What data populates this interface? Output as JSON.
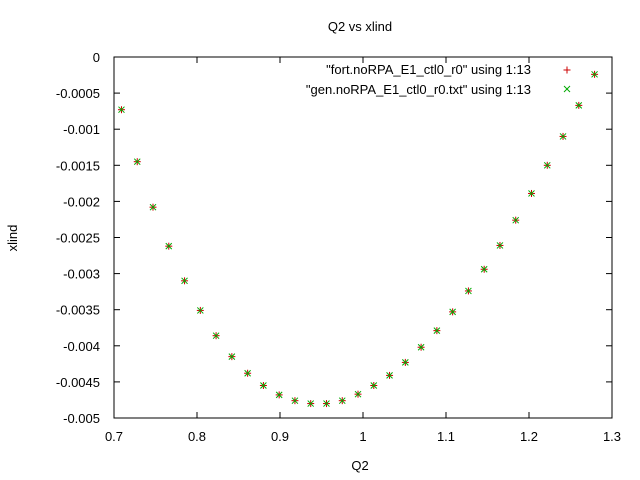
{
  "chart_data": {
    "type": "scatter",
    "title": "Q2 vs xlind",
    "xlabel": "Q2",
    "ylabel": "xlind",
    "xlim": [
      0.7,
      1.3
    ],
    "ylim": [
      -0.005,
      0
    ],
    "grid": false,
    "legend_position": "top-right",
    "x_ticks": [
      0.7,
      0.8,
      0.9,
      1.0,
      1.1,
      1.2,
      1.3
    ],
    "x_tick_labels": [
      "0.7",
      "0.8",
      "0.9",
      "1",
      "1.1",
      "1.2",
      "1.3"
    ],
    "y_ticks": [
      0,
      -0.0005,
      -0.001,
      -0.0015,
      -0.002,
      -0.0025,
      -0.003,
      -0.0035,
      -0.004,
      -0.0045,
      -0.005
    ],
    "y_tick_labels": [
      "0",
      "-0.0005",
      "-0.001",
      "-0.0015",
      "-0.002",
      "-0.0025",
      "-0.003",
      "-0.0035",
      "-0.004",
      "-0.0045",
      "-0.005"
    ],
    "series": [
      {
        "name": "\"fort.noRPA_E1_ctl0_r0\" using 1:13",
        "marker": "plus",
        "color": "#cc0000",
        "x": [
          0.709,
          0.728,
          0.747,
          0.766,
          0.785,
          0.804,
          0.823,
          0.842,
          0.861,
          0.88,
          0.899,
          0.918,
          0.937,
          0.956,
          0.975,
          0.994,
          1.013,
          1.032,
          1.051,
          1.07,
          1.089,
          1.108,
          1.127,
          1.146,
          1.165,
          1.184,
          1.203,
          1.222,
          1.241,
          1.26,
          1.279
        ],
        "y": [
          -0.00073,
          -0.00145,
          -0.00208,
          -0.00262,
          -0.0031,
          -0.00351,
          -0.00386,
          -0.00415,
          -0.00438,
          -0.00455,
          -0.00468,
          -0.00476,
          -0.0048,
          -0.0048,
          -0.00476,
          -0.00467,
          -0.00455,
          -0.00441,
          -0.00423,
          -0.00402,
          -0.00379,
          -0.00353,
          -0.00324,
          -0.00294,
          -0.00261,
          -0.00226,
          -0.00189,
          -0.0015,
          -0.0011,
          -0.00067,
          -0.00024
        ]
      },
      {
        "name": "\"gen.noRPA_E1_ctl0_r0.txt\" using 1:13",
        "marker": "cross",
        "color": "#00aa00",
        "x": [
          0.709,
          0.728,
          0.747,
          0.766,
          0.785,
          0.804,
          0.823,
          0.842,
          0.861,
          0.88,
          0.899,
          0.918,
          0.937,
          0.956,
          0.975,
          0.994,
          1.013,
          1.032,
          1.051,
          1.07,
          1.089,
          1.108,
          1.127,
          1.146,
          1.165,
          1.184,
          1.203,
          1.222,
          1.241,
          1.26,
          1.279
        ],
        "y": [
          -0.00073,
          -0.00145,
          -0.00208,
          -0.00262,
          -0.0031,
          -0.00351,
          -0.00386,
          -0.00415,
          -0.00438,
          -0.00455,
          -0.00468,
          -0.00476,
          -0.0048,
          -0.0048,
          -0.00476,
          -0.00467,
          -0.00455,
          -0.00441,
          -0.00423,
          -0.00402,
          -0.00379,
          -0.00353,
          -0.00324,
          -0.00294,
          -0.00261,
          -0.00226,
          -0.00189,
          -0.0015,
          -0.0011,
          -0.00067,
          -0.00024
        ]
      }
    ]
  }
}
